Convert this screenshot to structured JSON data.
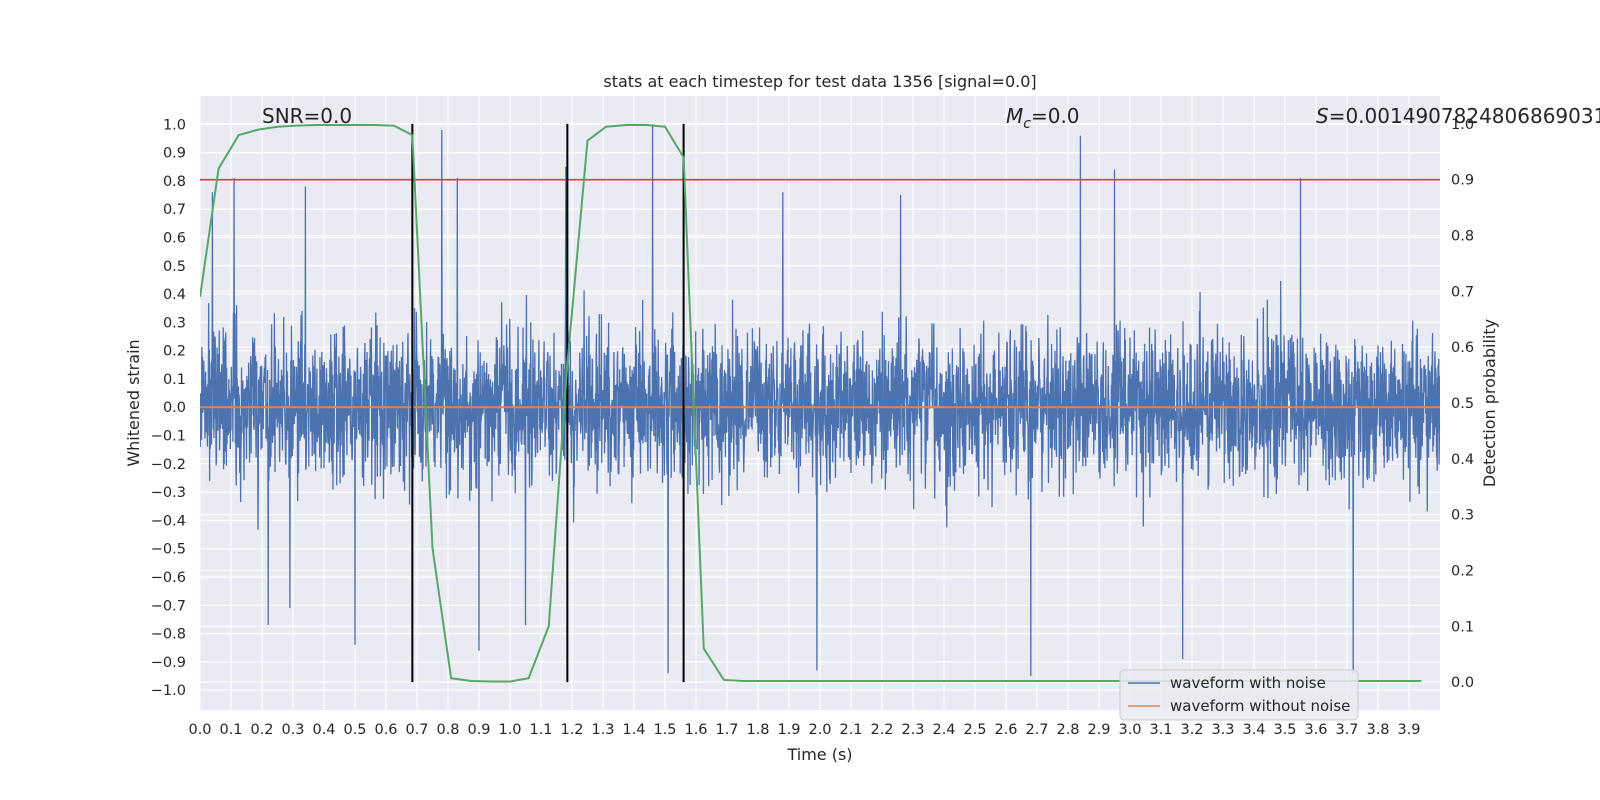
{
  "chart_data": {
    "type": "line",
    "title": "stats at each timestep for test data 1356 [signal=0.0]",
    "xlabel": "Time (s)",
    "ylabel_left": "Whitened strain",
    "ylabel_right": "Detection probability",
    "xlim": [
      0.0,
      4.0
    ],
    "ylim_left": [
      -1.07,
      1.1
    ],
    "ylim_right": [
      -0.05,
      1.05
    ],
    "x_ticks": [
      "0.0",
      "0.1",
      "0.2",
      "0.3",
      "0.4",
      "0.5",
      "0.6",
      "0.7",
      "0.8",
      "0.9",
      "1.0",
      "1.1",
      "1.2",
      "1.3",
      "1.4",
      "1.5",
      "1.6",
      "1.7",
      "1.8",
      "1.9",
      "2.0",
      "2.1",
      "2.2",
      "2.3",
      "2.4",
      "2.5",
      "2.6",
      "2.7",
      "2.8",
      "2.9",
      "3.0",
      "3.1",
      "3.2",
      "3.3",
      "3.4",
      "3.5",
      "3.6",
      "3.7",
      "3.8",
      "3.9"
    ],
    "y_ticks_left": [
      "1.0",
      "0.9",
      "0.8",
      "0.7",
      "0.6",
      "0.5",
      "0.4",
      "0.3",
      "0.2",
      "0.1",
      "0.0",
      "-0.1",
      "-0.2",
      "-0.3",
      "-0.4",
      "-0.5",
      "-0.6",
      "-0.7",
      "-0.8",
      "-0.9",
      "-1.0"
    ],
    "y_ticks_right": [
      "1.0",
      "0.9",
      "0.8",
      "0.7",
      "0.6",
      "0.5",
      "0.4",
      "0.3",
      "0.2",
      "0.1",
      "0.0"
    ],
    "grid": true,
    "legend_position": "bottom-right",
    "annotations": {
      "snr": "SNR=0.0",
      "mc_symbol": "M",
      "mc_sub": "c",
      "mc_value": "=0.0",
      "s_symbol": "S",
      "s_value": "=0.0014907824806869031"
    },
    "threshold_right": 0.9,
    "vertical_lines_x": [
      0.685,
      1.185,
      1.56
    ],
    "series": [
      {
        "name": "waveform with noise",
        "axis": "left",
        "color": "#4c72b0",
        "noise_amplitude": 0.19,
        "peak_samples": [
          [
            0.04,
            0.76
          ],
          [
            0.11,
            0.81
          ],
          [
            0.22,
            -0.77
          ],
          [
            0.29,
            -0.71
          ],
          [
            0.34,
            0.78
          ],
          [
            0.5,
            -0.84
          ],
          [
            0.78,
            0.98
          ],
          [
            0.83,
            0.81
          ],
          [
            0.9,
            -0.86
          ],
          [
            1.05,
            -0.77
          ],
          [
            1.18,
            0.85
          ],
          [
            1.46,
            1.0
          ],
          [
            1.51,
            -0.94
          ],
          [
            1.88,
            0.76
          ],
          [
            1.99,
            -0.93
          ],
          [
            2.26,
            0.75
          ],
          [
            2.68,
            -0.95
          ],
          [
            2.84,
            0.96
          ],
          [
            2.95,
            0.84
          ],
          [
            3.17,
            -0.89
          ],
          [
            3.55,
            0.81
          ],
          [
            3.72,
            -0.94
          ]
        ]
      },
      {
        "name": "waveform without noise",
        "axis": "left",
        "color": "#dd8452",
        "x": [
          0.0,
          4.0
        ],
        "y": [
          0.0,
          0.0
        ]
      },
      {
        "name": "Detection probability",
        "axis": "right",
        "color": "#55a868",
        "x": [
          0.0,
          0.06,
          0.125,
          0.19,
          0.25,
          0.31,
          0.375,
          0.44,
          0.5,
          0.56,
          0.625,
          0.685,
          0.75,
          0.81,
          0.875,
          0.94,
          1.0,
          1.06,
          1.125,
          1.185,
          1.25,
          1.31,
          1.375,
          1.44,
          1.5,
          1.56,
          1.625,
          1.69,
          1.75,
          2.0,
          2.25,
          2.5,
          2.75,
          3.0,
          3.25,
          3.5,
          3.75,
          3.94
        ],
        "y": [
          0.69,
          0.92,
          0.98,
          0.99,
          0.995,
          0.997,
          0.998,
          0.998,
          0.998,
          0.998,
          0.997,
          0.98,
          0.24,
          0.007,
          0.002,
          0.001,
          0.001,
          0.007,
          0.1,
          0.57,
          0.97,
          0.995,
          0.998,
          0.998,
          0.995,
          0.94,
          0.06,
          0.004,
          0.002,
          0.002,
          0.002,
          0.002,
          0.002,
          0.002,
          0.002,
          0.002,
          0.002,
          0.002
        ]
      }
    ]
  }
}
